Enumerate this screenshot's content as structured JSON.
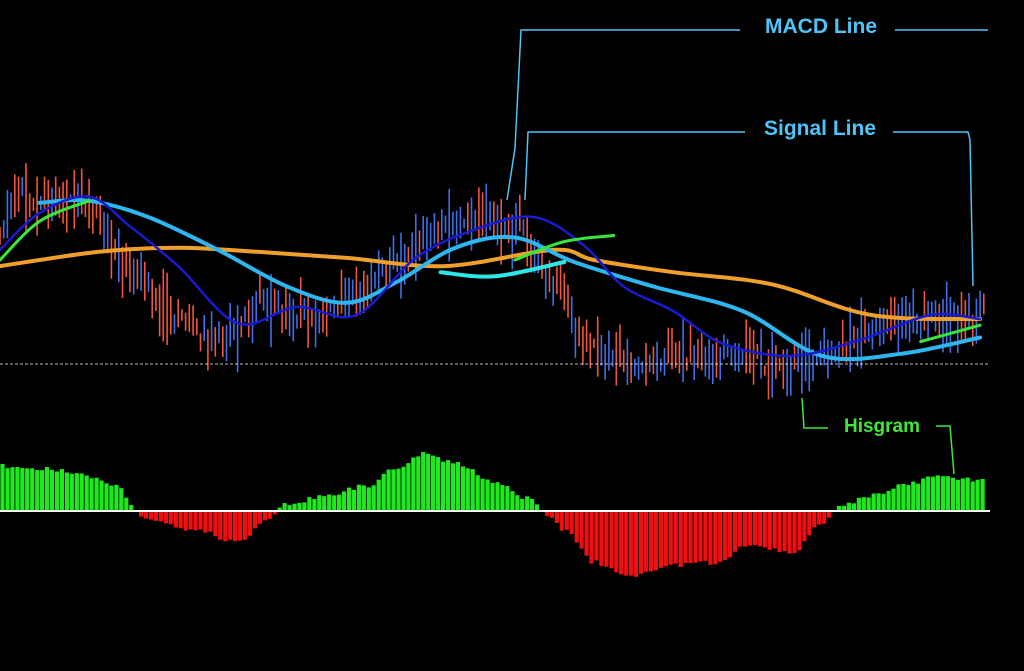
{
  "chart_data": {
    "type": "line",
    "title": "",
    "xlabel": "",
    "ylabel": "",
    "grid": false,
    "annotations": {
      "macd_line": "MACD Line",
      "signal_line": "Signal Line",
      "histogram": "Hisgram"
    },
    "colors": {
      "background": "#000000",
      "bull_candle": "#3f6fe8",
      "bear_candle": "#f2553a",
      "ma_fast": "#1a1ad0",
      "ma_mid": "#2db6f0",
      "ma_slow": "#f0a02a",
      "signal_green": "#37e83c",
      "signal_cyan": "#2ee6e6",
      "hist_pos": "#1ee81e",
      "hist_neg": "#ee1010",
      "label_blue": "#4ec4f8",
      "label_green": "#3ee83a",
      "zero_line": "#ffffff"
    },
    "x_range": [
      0,
      200
    ],
    "price_range": [
      0,
      100
    ],
    "price_zero_level": 0,
    "price_control": {
      "x": [
        0,
        4,
        10,
        18,
        26,
        36,
        44,
        54,
        62,
        72,
        80,
        90,
        96,
        104,
        112,
        118,
        126,
        134,
        142,
        150,
        158,
        168,
        176,
        184,
        192,
        200
      ],
      "y": [
        66,
        82,
        80,
        76,
        48,
        22,
        12,
        30,
        22,
        34,
        50,
        68,
        72,
        66,
        40,
        12,
        0,
        4,
        2,
        6,
        -2,
        6,
        16,
        22,
        22,
        26
      ]
    },
    "ma_fast_control": {
      "x": [
        0,
        8,
        18,
        26,
        36,
        48,
        60,
        72,
        84,
        96,
        108,
        118,
        126,
        136,
        146,
        160,
        174,
        188,
        198
      ],
      "y": [
        56,
        74,
        82,
        68,
        48,
        20,
        28,
        24,
        52,
        66,
        72,
        58,
        38,
        26,
        10,
        4,
        12,
        24,
        22
      ]
    },
    "ma_mid_control": {
      "x": [
        8,
        18,
        30,
        44,
        58,
        70,
        80,
        92,
        104,
        116,
        132,
        150,
        166,
        182,
        198
      ],
      "y": [
        79,
        80,
        72,
        56,
        38,
        30,
        40,
        57,
        62,
        50,
        38,
        26,
        4,
        5,
        13
      ]
    },
    "ma_slow_control": {
      "x": [
        0,
        20,
        36,
        52,
        70,
        90,
        112,
        120,
        136,
        156,
        176,
        198
      ],
      "y": [
        48,
        55,
        57,
        55,
        52,
        48,
        56,
        51,
        45,
        39,
        24,
        22
      ]
    },
    "signal_green_segments": [
      {
        "x": [
          0,
          8,
          18
        ],
        "y": [
          51,
          70,
          80
        ]
      },
      {
        "x": [
          104,
          114,
          124
        ],
        "y": [
          51,
          60,
          63
        ]
      },
      {
        "x": [
          186,
          198
        ],
        "y": [
          11,
          19
        ]
      }
    ],
    "signal_cyan_segment": {
      "x": [
        89,
        100,
        114
      ],
      "y": [
        45,
        43,
        50
      ]
    },
    "hist_range": [
      -100,
      100
    ],
    "histogram_control": {
      "x": [
        0,
        8,
        16,
        24,
        28,
        30,
        40,
        48,
        54,
        58,
        66,
        74,
        80,
        86,
        92,
        100,
        106,
        112,
        114,
        120,
        128,
        136,
        144,
        152,
        160,
        166,
        170,
        176,
        182,
        190,
        198
      ],
      "y": [
        68,
        64,
        58,
        36,
        -4,
        -12,
        -30,
        -48,
        -15,
        10,
        24,
        38,
        65,
        87,
        72,
        45,
        20,
        -12,
        -30,
        -78,
        -98,
        -82,
        -78,
        -50,
        -65,
        -18,
        8,
        24,
        38,
        52,
        47
      ]
    }
  }
}
